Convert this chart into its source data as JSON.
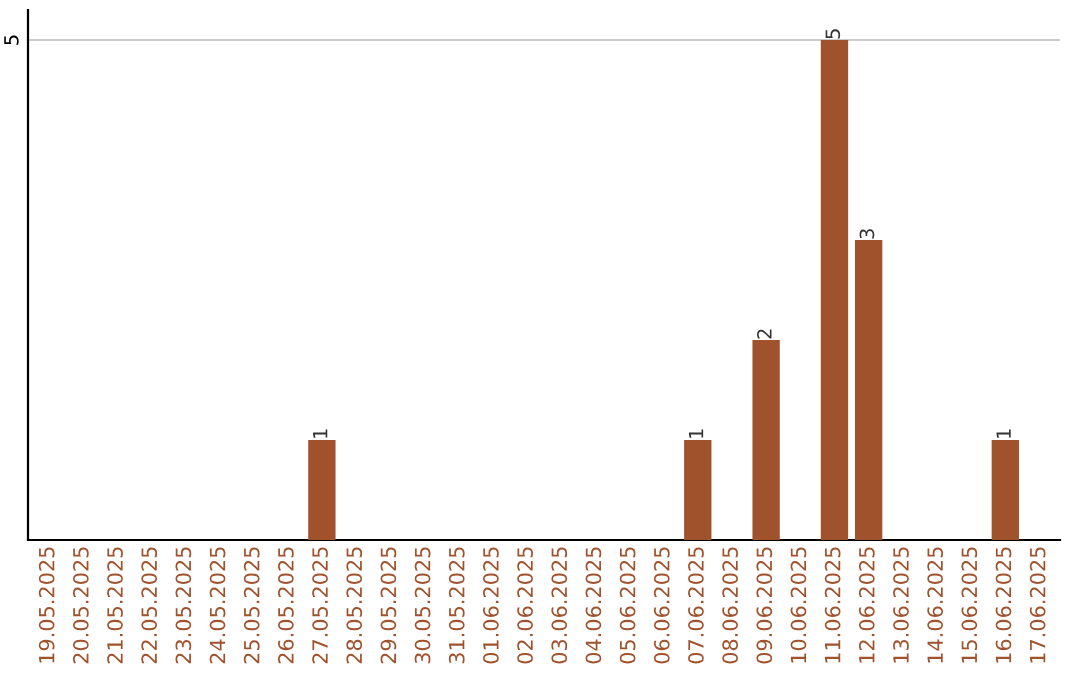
{
  "chart_data": {
    "type": "bar",
    "categories": [
      "19.05.2025",
      "20.05.2025",
      "21.05.2025",
      "22.05.2025",
      "23.05.2025",
      "24.05.2025",
      "25.05.2025",
      "26.05.2025",
      "27.05.2025",
      "28.05.2025",
      "29.05.2025",
      "30.05.2025",
      "31.05.2025",
      "01.06.2025",
      "02.06.2025",
      "03.06.2025",
      "04.06.2025",
      "05.06.2025",
      "06.06.2025",
      "07.06.2025",
      "08.06.2025",
      "09.06.2025",
      "10.06.2025",
      "11.06.2025",
      "12.06.2025",
      "13.06.2025",
      "14.06.2025",
      "15.06.2025",
      "16.06.2025",
      "17.06.2025"
    ],
    "values": [
      0,
      0,
      0,
      0,
      0,
      0,
      0,
      0,
      1,
      0,
      0,
      0,
      0,
      0,
      0,
      0,
      0,
      0,
      0,
      1,
      0,
      2,
      0,
      5,
      3,
      0,
      0,
      0,
      1,
      0
    ],
    "value_labels": [
      null,
      null,
      null,
      null,
      null,
      null,
      null,
      null,
      "1",
      null,
      null,
      null,
      null,
      null,
      null,
      null,
      null,
      null,
      null,
      "1",
      null,
      "2",
      null,
      "5",
      "3",
      null,
      null,
      null,
      "1",
      null
    ],
    "color": "#a0522d",
    "ylim": [
      0,
      5.3
    ],
    "yticks": [
      5
    ],
    "grid": "y",
    "legend": false
  }
}
